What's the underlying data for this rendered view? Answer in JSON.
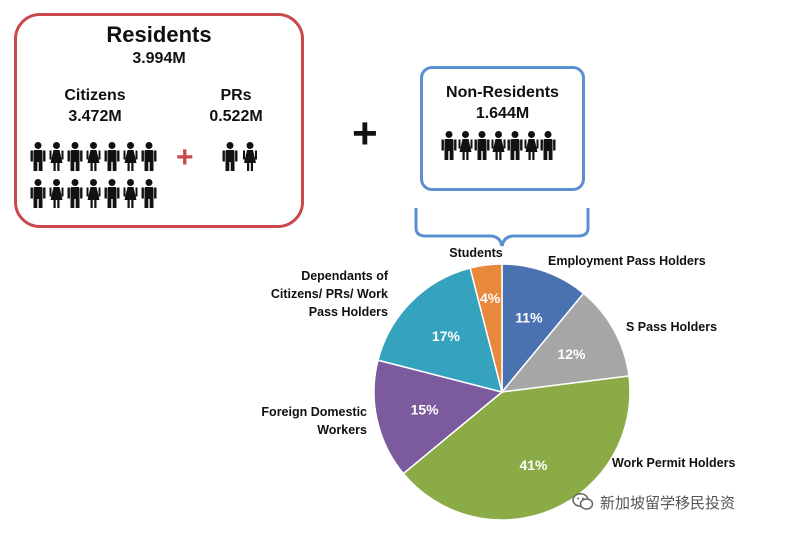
{
  "residents": {
    "title": "Residents",
    "total": "3.994M",
    "citizens": {
      "label": "Citizens",
      "value": "3.472M"
    },
    "prs": {
      "label": "PRs",
      "value": "0.522M"
    },
    "plus_sign": "+"
  },
  "main_plus": "+",
  "non_residents": {
    "title": "Non-Residents",
    "value": "1.644M"
  },
  "colors": {
    "residents_border": "#c9484b",
    "non_residents_border": "#5a8fd0",
    "plus_red": "#c9484b"
  },
  "chart_data": {
    "type": "pie",
    "slices": [
      {
        "label": "Employment Pass Holders",
        "value": 11,
        "pct_label": "11%",
        "color": "#4a72b0"
      },
      {
        "label": "S Pass Holders",
        "value": 12,
        "pct_label": "12%",
        "color": "#a6a6a6"
      },
      {
        "label": "Work Permit Holders",
        "value": 41,
        "pct_label": "41%",
        "color": "#8aab45"
      },
      {
        "label": "Foreign Domestic Workers",
        "value": 15,
        "pct_label": "15%",
        "color": "#7b5a9e"
      },
      {
        "label": "Dependants of Citizens/ PRs/ Work Pass Holders",
        "value": 17,
        "pct_label": "17%",
        "color": "#35a3be"
      },
      {
        "label": "Students",
        "value": 4,
        "pct_label": "4%",
        "color": "#e8883a"
      }
    ]
  },
  "watermark": {
    "text": "新加坡留学移民投资",
    "icon": "wechat-icon"
  }
}
